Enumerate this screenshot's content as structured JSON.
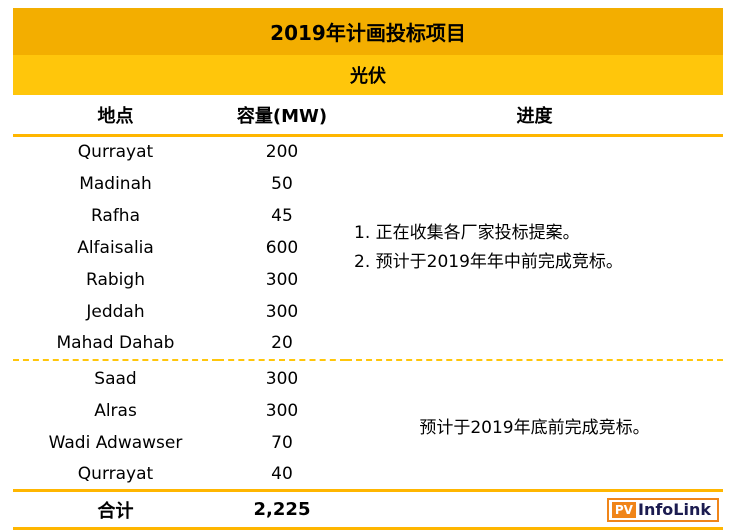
{
  "title": "2019年计画投标项目",
  "subtitle": "光伏",
  "colors": {
    "gold": "#F3AE00",
    "yellow": "#FFC60B",
    "line": "#FFB600",
    "dash": "#FFC60B",
    "logo-orange": "#F08519",
    "logo-text": "#1C1C50"
  },
  "table": {
    "headers": [
      "地点",
      "容量(MW)",
      "进度"
    ],
    "group1": {
      "rows": [
        {
          "location": "Qurrayat",
          "capacity": "200"
        },
        {
          "location": "Madinah",
          "capacity": "50"
        },
        {
          "location": "Rafha",
          "capacity": "45"
        },
        {
          "location": "Alfaisalia",
          "capacity": "600"
        },
        {
          "location": "Rabigh",
          "capacity": "300"
        },
        {
          "location": "Jeddah",
          "capacity": "300"
        },
        {
          "location": "Mahad Dahab",
          "capacity": "20"
        }
      ],
      "progress_lines": [
        "1. 正在收集各厂家投标提案。",
        "2. 预计于2019年年中前完成竞标。"
      ]
    },
    "group2": {
      "rows": [
        {
          "location": "Saad",
          "capacity": "300"
        },
        {
          "location": "Alras",
          "capacity": "300"
        },
        {
          "location": "Wadi Adwawser",
          "capacity": "70"
        },
        {
          "location": "Qurrayat",
          "capacity": "40"
        }
      ],
      "progress": "预计于2019年底前完成竞标。"
    },
    "total_label": "合计",
    "total_value": "2,225"
  },
  "logo": {
    "pv": "PV",
    "name": "InfoLink"
  }
}
